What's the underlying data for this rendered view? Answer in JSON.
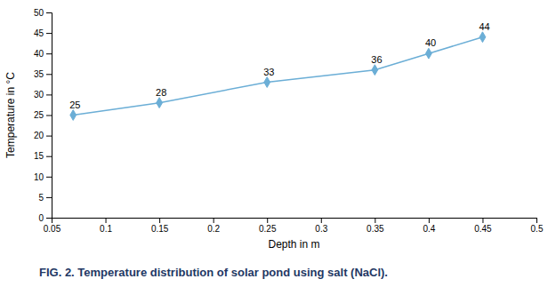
{
  "chart_data": {
    "type": "line",
    "title": "FIG. 2. Temperature distribution of solar pond using salt (NaCl).",
    "xlabel": "Depth in m",
    "ylabel": "Temperature in °C",
    "x": [
      0.07,
      0.15,
      0.25,
      0.35,
      0.4,
      0.45
    ],
    "values": [
      25,
      28,
      33,
      36,
      40,
      44
    ],
    "color": "#6baed6",
    "marker": "diamond",
    "data_labels": true,
    "grid": false,
    "xlim": [
      0.05,
      0.5
    ],
    "xticks": [
      0.05,
      0.1,
      0.15,
      0.2,
      0.25,
      0.3,
      0.35,
      0.4,
      0.45,
      0.5
    ],
    "ylim": [
      0,
      50
    ],
    "yticks": [
      0,
      5,
      10,
      15,
      20,
      25,
      30,
      35,
      40,
      45,
      50
    ]
  }
}
